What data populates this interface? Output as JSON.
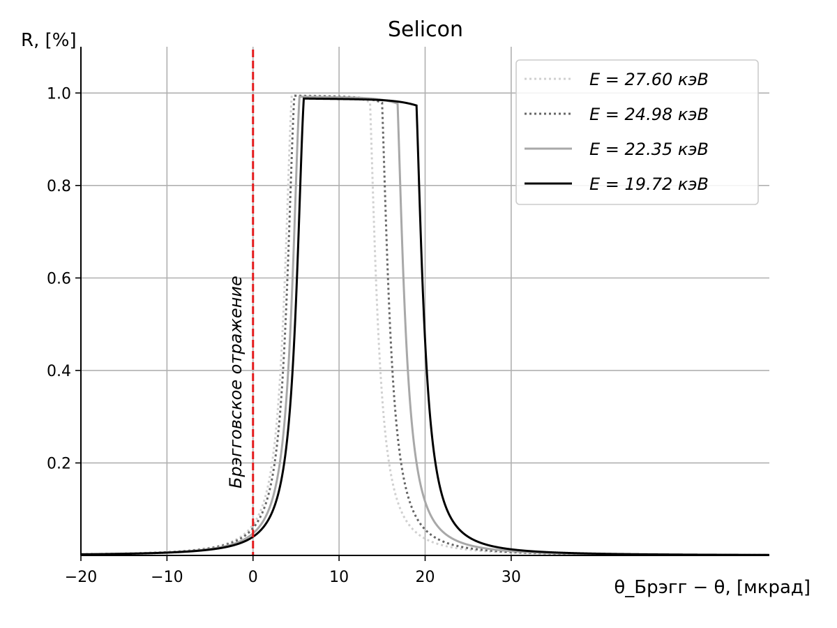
{
  "chart_data": {
    "type": "line",
    "title": "Selicon",
    "ylabel": "R, [%]",
    "xlabel": "θ_Брэгг − θ, [мкрад]",
    "xlim": [
      -20,
      60
    ],
    "ylim": [
      0,
      1.1
    ],
    "x_ticks": [
      -20,
      -10,
      0,
      10,
      20,
      30
    ],
    "x_tick_labels": [
      "−20",
      "−10",
      "0",
      "10",
      "20",
      "30"
    ],
    "y_ticks": [
      0.2,
      0.4,
      0.6,
      0.8,
      1.0
    ],
    "y_tick_labels": [
      "0.2",
      "0.4",
      "0.6",
      "0.8",
      "1.0"
    ],
    "grid": true,
    "legend_position": "top-right",
    "annotation": {
      "text": "Брэгговское отражение",
      "x": 0,
      "line_color": "#e41a1c",
      "line_style": "dashed"
    },
    "series": [
      {
        "name": "E = 27.60 кэВ",
        "color": "#d0d0d0",
        "style": "dotted",
        "plateau": [
          4.5,
          13.6
        ],
        "peak": 0.995
      },
      {
        "name": "E = 24.98 кэВ",
        "color": "#666666",
        "style": "dotted",
        "plateau": [
          4.8,
          15.0
        ],
        "peak": 0.994
      },
      {
        "name": "E = 22.35 кэВ",
        "color": "#a8a8a8",
        "style": "solid",
        "plateau": [
          5.4,
          16.8
        ],
        "peak": 0.992
      },
      {
        "name": "E = 19.72 кэВ",
        "color": "#000000",
        "style": "solid",
        "plateau": [
          5.9,
          19.0
        ],
        "peak": 0.988
      }
    ]
  }
}
